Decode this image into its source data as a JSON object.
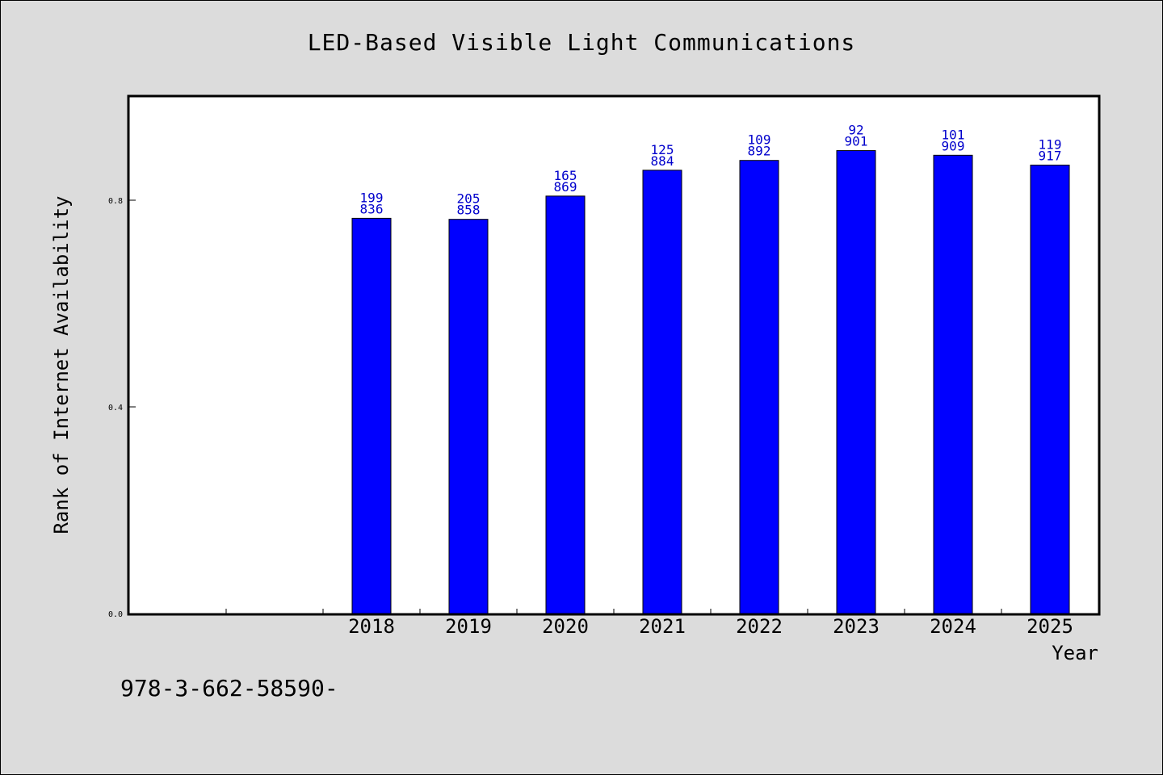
{
  "chart_data": {
    "type": "bar",
    "title": "LED-Based Visible Light Communications",
    "xlabel": "Year",
    "ylabel": "Rank of Internet Availability",
    "categories": [
      "",
      "",
      "2018",
      "2019",
      "2020",
      "2021",
      "2022",
      "2023",
      "2024",
      "2025"
    ],
    "values": [
      null,
      null,
      0.765,
      0.763,
      0.808,
      0.858,
      0.877,
      0.896,
      0.887,
      0.868
    ],
    "labels_top": [
      "",
      "",
      "199",
      "205",
      "165",
      "125",
      "109",
      "92",
      "101",
      "119"
    ],
    "labels_bottom": [
      "",
      "",
      "836",
      "858",
      "869",
      "884",
      "892",
      "901",
      "909",
      "917"
    ],
    "yticks": [
      0.0,
      0.4,
      0.8
    ],
    "ytick_labels": [
      "0.0",
      "0.4",
      "0.8"
    ],
    "ylim": [
      0,
      1.0
    ],
    "bar_color": "#0000ff",
    "label_color": "#0000cc",
    "grid": false,
    "legend": "none"
  },
  "footer": {
    "text": "978-3-662-58590-"
  }
}
